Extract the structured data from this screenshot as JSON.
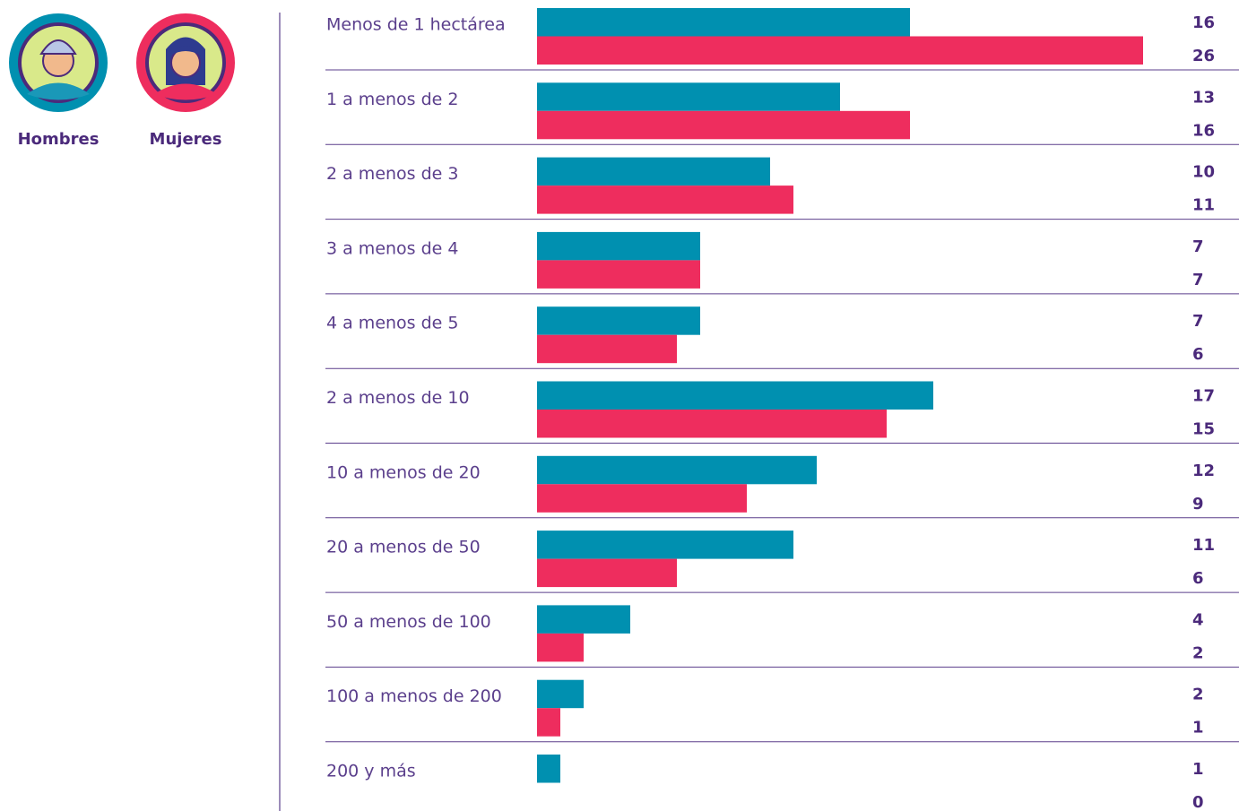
{
  "chart_data": {
    "type": "grouped-hbar",
    "categories": [
      "Menos de 1 hectárea",
      "1 a menos de 2",
      "2 a menos de 3",
      "3 a menos de 4",
      "4 a menos de 5",
      "2 a menos de 10",
      "10 a menos de 20",
      "20 a menos de 50",
      "50 a menos de 100",
      "100 a menos de 200",
      "200 y más"
    ],
    "series": [
      {
        "name": "Hombres",
        "color": "#0090b0",
        "values": [
          16,
          13,
          10,
          7,
          7,
          17,
          12,
          11,
          4,
          2,
          1
        ]
      },
      {
        "name": "Mujeres",
        "color": "#ee2d5e",
        "values": [
          26,
          16,
          11,
          7,
          6,
          15,
          9,
          6,
          2,
          1,
          0
        ]
      }
    ]
  }
}
